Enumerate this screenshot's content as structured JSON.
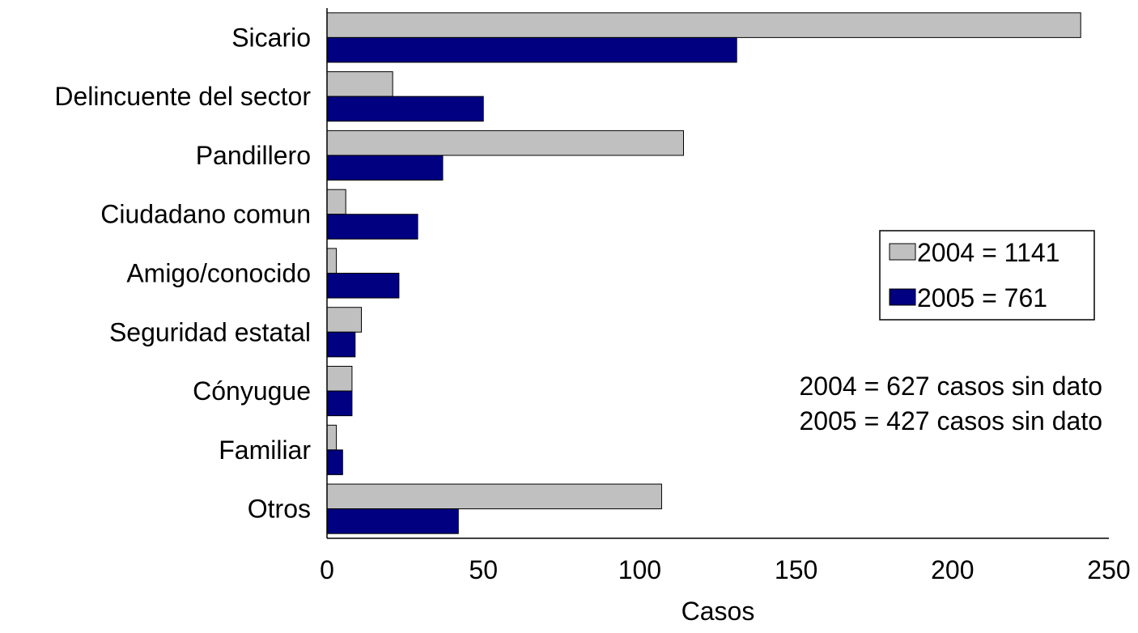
{
  "chart_data": {
    "type": "bar",
    "orientation": "horizontal",
    "categories": [
      "Sicario",
      "Delincuente del sector",
      "Pandillero",
      "Ciudadano comun",
      "Amigo/conocido",
      "Seguridad estatal",
      "Cónyugue",
      "Familiar",
      "Otros"
    ],
    "series": [
      {
        "name": "2004 = 1141",
        "color": "#c0c0c0",
        "values": [
          241,
          21,
          114,
          6,
          3,
          11,
          8,
          3,
          107
        ]
      },
      {
        "name": "2005 = 761",
        "color": "#000080",
        "values": [
          131,
          50,
          37,
          29,
          23,
          9,
          8,
          5,
          42
        ]
      }
    ],
    "xlabel": "Casos",
    "ylabel": "",
    "title": "",
    "xlim": [
      0,
      250
    ],
    "xticks": [
      "0",
      "50",
      "100",
      "150",
      "200",
      "250"
    ],
    "grid": false,
    "legend_position": "right",
    "annotations": [
      "2004 = 627 casos sin dato",
      "2005 = 427 casos sin dato"
    ]
  }
}
